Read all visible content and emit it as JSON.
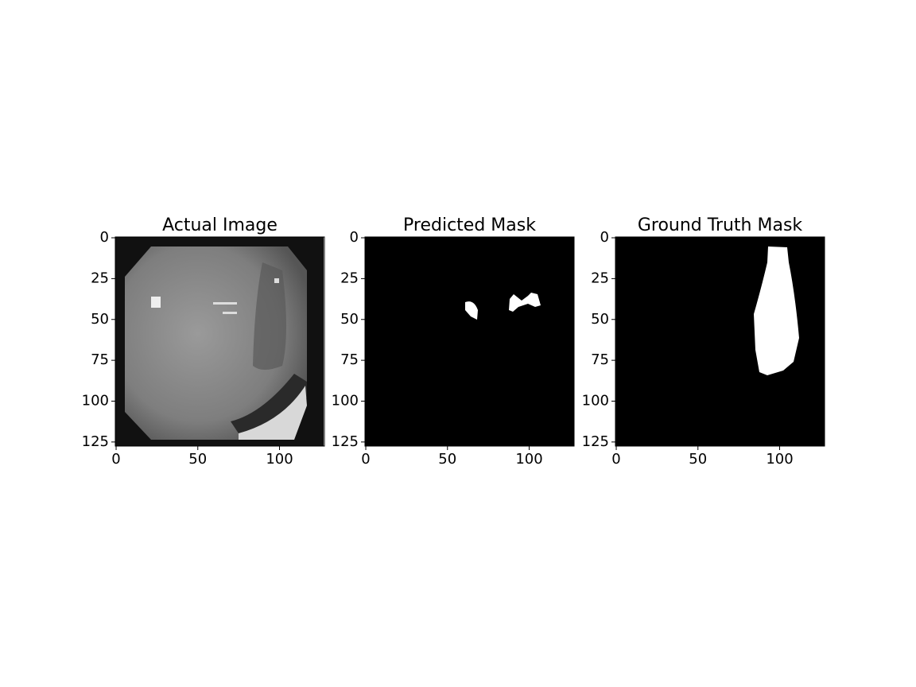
{
  "chart_data": [
    {
      "type": "image",
      "title": "Actual Image",
      "xlim": [
        -0.5,
        127.5
      ],
      "ylim": [
        127.5,
        -0.5
      ],
      "xticks": [
        0,
        50,
        100
      ],
      "yticks": [
        0,
        25,
        50,
        75,
        100,
        125
      ]
    },
    {
      "type": "image",
      "title": "Predicted Mask",
      "xlim": [
        -0.5,
        127.5
      ],
      "ylim": [
        127.5,
        -0.5
      ],
      "xticks": [
        0,
        50,
        100
      ],
      "yticks": [
        0,
        25,
        50,
        75,
        100,
        125
      ]
    },
    {
      "type": "image",
      "title": "Ground Truth Mask",
      "xlim": [
        -0.5,
        127.5
      ],
      "ylim": [
        127.5,
        -0.5
      ],
      "xticks": [
        0,
        50,
        100
      ],
      "yticks": [
        0,
        25,
        50,
        75,
        100,
        125
      ]
    }
  ]
}
